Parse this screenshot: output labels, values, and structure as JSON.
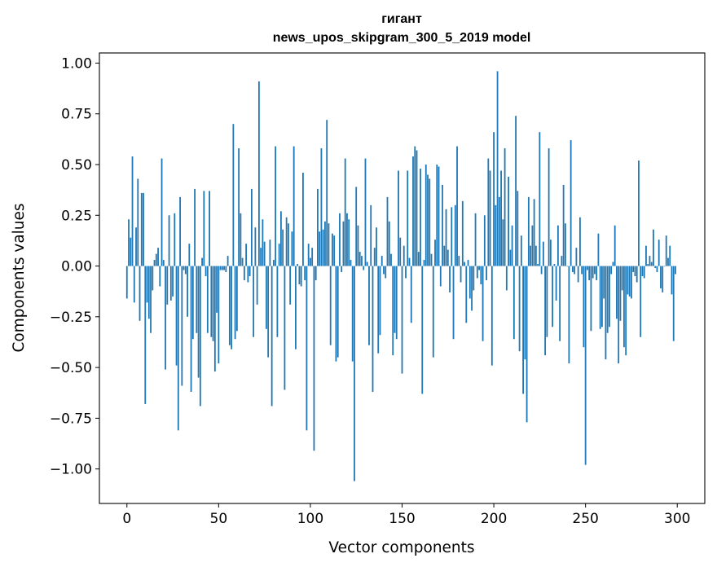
{
  "chart_data": {
    "type": "bar",
    "title_line1": "гигант",
    "title_line2": "news_upos_skipgram_300_5_2019 model",
    "xlabel": "Vector components",
    "ylabel": "Components values",
    "xlim": [
      -15,
      315
    ],
    "ylim": [
      -1.17,
      1.05
    ],
    "xticks": [
      0,
      50,
      100,
      150,
      200,
      250,
      300
    ],
    "xtick_labels": [
      "0",
      "50",
      "100",
      "150",
      "200",
      "250",
      "300"
    ],
    "yticks": [
      1.0,
      0.75,
      0.5,
      0.25,
      0.0,
      -0.25,
      -0.5,
      -0.75,
      -1.0
    ],
    "ytick_labels": [
      "1.00",
      "0.75",
      "0.50",
      "0.25",
      "0.00",
      "−0.25",
      "−0.50",
      "−0.75",
      "−1.00"
    ],
    "bar_color": "#1f77b4",
    "values": [
      -0.16,
      0.23,
      0.14,
      0.54,
      -0.18,
      0.19,
      0.43,
      -0.27,
      0.36,
      0.36,
      -0.68,
      -0.18,
      -0.26,
      -0.33,
      -0.12,
      0.03,
      0.06,
      0.09,
      -0.1,
      0.53,
      0.03,
      -0.51,
      -0.19,
      0.25,
      -0.17,
      -0.15,
      0.26,
      -0.49,
      -0.81,
      0.34,
      -0.59,
      -0.02,
      -0.04,
      -0.25,
      0.11,
      -0.62,
      -0.36,
      0.38,
      -0.33,
      -0.55,
      -0.69,
      0.04,
      0.37,
      -0.05,
      -0.33,
      0.37,
      -0.35,
      -0.37,
      -0.52,
      -0.23,
      -0.48,
      -0.02,
      -0.02,
      -0.02,
      -0.03,
      0.05,
      -0.39,
      -0.41,
      0.7,
      -0.36,
      -0.32,
      0.58,
      0.26,
      0.04,
      -0.07,
      0.11,
      -0.08,
      -0.05,
      0.38,
      -0.35,
      0.19,
      -0.19,
      0.91,
      0.09,
      0.23,
      0.12,
      -0.31,
      -0.45,
      0.13,
      -0.69,
      0.03,
      0.59,
      -0.35,
      0.11,
      0.27,
      0.18,
      -0.61,
      0.24,
      0.21,
      -0.19,
      0.17,
      0.59,
      -0.41,
      0.01,
      -0.09,
      -0.1,
      0.46,
      -0.07,
      -0.81,
      0.11,
      0.04,
      0.09,
      -0.91,
      -0.07,
      0.38,
      0.17,
      0.58,
      0.18,
      0.22,
      0.72,
      0.21,
      -0.39,
      0.16,
      0.15,
      -0.47,
      -0.45,
      0.26,
      -0.03,
      0.22,
      0.53,
      0.26,
      0.23,
      0.03,
      -0.47,
      -1.06,
      0.39,
      0.2,
      0.07,
      0.05,
      -0.02,
      0.53,
      0.02,
      -0.39,
      0.3,
      -0.62,
      0.09,
      0.19,
      -0.43,
      -0.34,
      0.05,
      -0.04,
      -0.06,
      0.34,
      0.22,
      0.06,
      -0.44,
      -0.33,
      -0.36,
      0.47,
      0.14,
      -0.53,
      0.1,
      -0.06,
      0.47,
      0.04,
      -0.28,
      0.54,
      0.59,
      0.57,
      0.07,
      0.48,
      -0.63,
      0.03,
      0.5,
      0.45,
      0.43,
      0.06,
      -0.45,
      0.13,
      0.5,
      0.49,
      -0.1,
      0.4,
      0.1,
      0.28,
      0.08,
      -0.13,
      0.29,
      -0.36,
      0.3,
      0.59,
      0.05,
      -0.08,
      0.32,
      0.02,
      -0.28,
      0.03,
      -0.16,
      -0.22,
      -0.12,
      0.26,
      -0.06,
      -0.02,
      -0.09,
      -0.37,
      0.25,
      -0.07,
      0.53,
      0.47,
      -0.49,
      0.66,
      0.3,
      0.96,
      0.34,
      0.47,
      0.23,
      0.58,
      -0.12,
      0.44,
      0.08,
      0.2,
      -0.36,
      0.74,
      0.37,
      -0.42,
      0.15,
      -0.63,
      -0.46,
      -0.77,
      0.34,
      0.1,
      0.2,
      0.33,
      0.1,
      0.01,
      0.66,
      -0.04,
      0.12,
      -0.44,
      -0.35,
      0.58,
      0.13,
      -0.3,
      0.01,
      -0.17,
      0.2,
      -0.37,
      0.05,
      0.4,
      0.21,
      0.0,
      -0.48,
      0.62,
      -0.03,
      -0.04,
      0.09,
      -0.08,
      0.24,
      -0.04,
      -0.4,
      -0.98,
      -0.02,
      -0.07,
      -0.32,
      -0.06,
      -0.04,
      -0.07,
      0.16,
      -0.31,
      -0.3,
      -0.16,
      -0.46,
      -0.33,
      -0.3,
      -0.04,
      0.02,
      0.2,
      -0.26,
      -0.48,
      -0.27,
      -0.12,
      -0.4,
      -0.44,
      -0.14,
      -0.15,
      -0.16,
      -0.03,
      -0.05,
      -0.08,
      0.52,
      -0.35,
      -0.05,
      -0.06,
      0.1,
      0.01,
      0.05,
      0.02,
      0.18,
      -0.01,
      -0.03,
      0.13,
      -0.11,
      -0.13,
      0.0,
      0.15,
      0.04,
      0.1,
      -0.14,
      -0.37,
      -0.04
    ]
  }
}
